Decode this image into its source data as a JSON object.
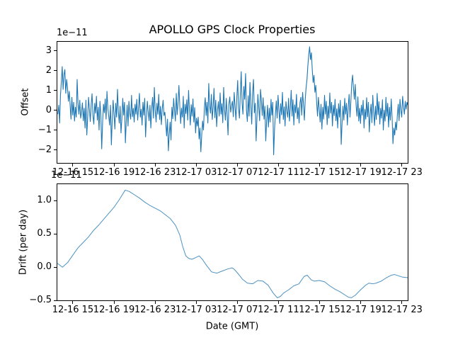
{
  "figure": {
    "title": "APOLLO GPS Clock Properties",
    "xlabel": "Date (GMT)"
  },
  "chart_data": [
    {
      "type": "line",
      "name": "offset",
      "title": "APOLLO GPS Clock Properties",
      "ylabel": "Offset",
      "offset_text": "1e−11",
      "line_color": "#1f77b4",
      "grid": false,
      "legend": "none",
      "xlim": [
        0,
        34.22
      ],
      "ylim": [
        -2.68,
        3.5
      ],
      "x_unit": "hours since 12-16 13:25 GMT",
      "yticks": [
        {
          "v": 3,
          "label": "3"
        },
        {
          "v": 2,
          "label": "2"
        },
        {
          "v": 1,
          "label": "1"
        },
        {
          "v": 0,
          "label": "0"
        },
        {
          "v": -1,
          "label": "−1"
        },
        {
          "v": -2,
          "label": "−2"
        }
      ],
      "xticks": [
        {
          "v": 1.58,
          "label": "12-16 15"
        },
        {
          "v": 5.58,
          "label": "12-16 19"
        },
        {
          "v": 9.58,
          "label": "12-16 23"
        },
        {
          "v": 13.58,
          "label": "12-17 03"
        },
        {
          "v": 17.58,
          "label": "12-17 07"
        },
        {
          "v": 21.58,
          "label": "12-17 11"
        },
        {
          "v": 25.58,
          "label": "12-17 15"
        },
        {
          "v": 29.58,
          "label": "12-17 19"
        },
        {
          "v": 33.58,
          "label": "12-17 23"
        }
      ],
      "x_start": 0.05,
      "x_end": 34.1,
      "values": [
        -0.15,
        0.3,
        -0.6,
        0.8,
        1.5,
        2.25,
        1.1,
        1.85,
        2.1,
        0.9,
        1.6,
        1.2,
        0.5,
        1.0,
        0.3,
        -0.4,
        0.7,
        -0.2,
        0.45,
        -0.5,
        0.2,
        -0.3,
        1.6,
        0.4,
        -0.15,
        0.55,
        -0.35,
        -0.05,
        0.42,
        -0.48,
        0.15,
        -0.85,
        0.55,
        -1.2,
        -0.3,
        0.7,
        0.1,
        -0.52,
        0.33,
        0.88,
        -0.22,
        -0.65,
        0.4,
        -0.1,
        0.75,
        -0.45,
        0.2,
        -0.95,
        0.5,
        -0.18,
        -1.9,
        -0.6,
        0.35,
        -0.08,
        0.62,
        -0.4,
        1.0,
        0.15,
        -0.25,
        -0.7,
        0.3,
        -1.7,
        -0.45,
        0.55,
        -0.15,
        -0.9,
        0.4,
        -0.3,
        1.1,
        -0.05,
        -0.6,
        0.25,
        -1.1,
        -0.35,
        0.65,
        -0.2,
        0.45,
        -1.6,
        -0.5,
        0.3,
        -0.75,
        0.5,
        -0.1,
        -0.4,
        0.8,
        -0.28,
        0.15,
        -0.55,
        0.35,
        -0.15,
        0.6,
        -0.45,
        0.2,
        0.9,
        -0.3,
        0.1,
        -0.7,
        0.45,
        -0.2,
        0.65,
        -1.3,
        -0.25,
        0.5,
        -0.05,
        -0.48,
        0.3,
        -0.85,
        0.15,
        0.7,
        -0.35,
        1.2,
        0.05,
        -0.55,
        0.4,
        -0.15,
        0.85,
        -0.42,
        0.25,
        -0.68,
        0.12,
        0.55,
        -0.22,
        -0.05,
        -0.6,
        -1.25,
        -0.4,
        -2.0,
        -1.15,
        -0.55,
        -1.45,
        0.2,
        -0.38,
        0.65,
        0.05,
        -0.5,
        0.9,
        -0.18,
        0.42,
        1.3,
        0.28,
        -0.62,
        0.15,
        -0.3,
        0.75,
        -0.85,
        0.35,
        -0.12,
        0.58,
        -0.45,
        1.05,
        0.02,
        -0.7,
        0.33,
        -0.25,
        0.62,
        -0.55,
        0.18,
        -1.1,
        -0.35,
        -0.75,
        -0.3,
        -1.4,
        -0.85,
        -2.05,
        -1.2,
        -0.5,
        -0.95,
        0.15,
        0.68,
        -0.22,
        0.45,
        -0.6,
        1.4,
        0.3,
        -0.1,
        0.85,
        -0.42,
        0.2,
        1.15,
        -0.33,
        0.55,
        -0.78,
        0.05,
        0.48,
        -0.25,
        0.92,
        -0.15,
        0.38,
        -0.58,
        1.2,
        0.1,
        -0.45,
        0.65,
        -0.2,
        -1.2,
        0.35,
        0.72,
        -0.05,
        0.28,
        0.5,
        -0.28,
        0.95,
        0.22,
        -0.45,
        0.7,
        1.55,
        0.15,
        -0.35,
        0.88,
        2.0,
        0.42,
        -0.15,
        1.25,
        0.6,
        1.9,
        0.05,
        -0.52,
        0.78,
        -0.25,
        1.45,
        0.3,
        -0.65,
        0.95,
        1.6,
        -0.08,
        0.4,
        -1.5,
        -0.3,
        0.85,
        0.18,
        -0.48,
        1.1,
        0.55,
        -0.22,
        0.68,
        -0.4,
        0.25,
        -1.5,
        -0.45,
        0.3,
        -0.8,
        0.15,
        -0.55,
        0.6,
        -0.2,
        0.45,
        -2.2,
        -0.9,
        -0.15,
        0.52,
        -0.35,
        0.8,
        0.08,
        -0.62,
        0.38,
        -0.18,
        0.95,
        -0.42,
        0.22,
        -0.75,
        0.48,
        0.02,
        -0.3,
        0.65,
        -0.5,
        0.15,
        1.05,
        -0.25,
        0.58,
        -0.7,
        0.32,
        -0.08,
        0.85,
        -0.38,
        0.18,
        -0.6,
        0.42,
        0.7,
        -0.2,
        0.95,
        0.35,
        -0.45,
        0.6,
        1.2,
        1.6,
        2.3,
        2.85,
        3.25,
        2.6,
        2.95,
        2.1,
        1.45,
        1.8,
        0.95,
        1.3,
        0.45,
        -0.25,
        0.7,
        0.1,
        -0.55,
        0.35,
        -0.9,
        0.2,
        -0.4,
        0.8,
        -0.15,
        0.5,
        -0.68,
        0.25,
        -0.35,
        0.92,
        -0.1,
        0.45,
        -0.75,
        0.3,
        -0.22,
        0.6,
        -0.48,
        0.12,
        -0.85,
        0.38,
        -0.3,
        0.55,
        -1.68,
        -0.6,
        0.25,
        -0.45,
        0.65,
        -0.15,
        0.4,
        -0.7,
        0.2,
        0.85,
        -0.3,
        0.5,
        1.4,
        1.82,
        1.15,
        0.6,
        1.35,
        0.28,
        -0.25,
        0.72,
        -0.5,
        0.15,
        -0.62,
        0.3,
        -0.2,
        0.55,
        -0.85,
        0.1,
        -0.4,
        0.68,
        -0.28,
        0.45,
        -1.05,
        -0.15,
        0.35,
        -0.58,
        0.8,
        -0.05,
        -0.72,
        0.25,
        -0.42,
        0.9,
        -0.18,
        0.48,
        -0.65,
        0.15,
        -0.35,
        0.58,
        -0.95,
        0.05,
        -0.5,
        0.7,
        -0.25,
        0.4,
        -0.8,
        0.2,
        -0.45,
        0.62,
        -0.3,
        -1.64,
        -0.85,
        -1.2,
        -0.55,
        -0.95,
        -0.2,
        0.35,
        -0.48,
        0.6,
        0.05,
        -0.3,
        0.75,
        0.25,
        -0.15,
        0.5,
        0.1,
        0.45,
        0.3
      ]
    },
    {
      "type": "line",
      "name": "drift",
      "ylabel": "Drift (per day)",
      "xlabel": "Date (GMT)",
      "offset_text": "1e−11",
      "line_color": "#1f77b4",
      "grid": false,
      "legend": "none",
      "xlim": [
        0,
        34.22
      ],
      "ylim": [
        -0.51,
        1.26
      ],
      "x_unit": "hours since 12-16 13:25 GMT",
      "yticks": [
        {
          "v": 1.0,
          "label": "1.0"
        },
        {
          "v": 0.5,
          "label": "0.5"
        },
        {
          "v": 0.0,
          "label": "0.0"
        },
        {
          "v": -0.5,
          "label": "−0.5"
        }
      ],
      "xticks": [
        {
          "v": 1.58,
          "label": "12-16 15"
        },
        {
          "v": 5.58,
          "label": "12-16 19"
        },
        {
          "v": 9.58,
          "label": "12-16 23"
        },
        {
          "v": 13.58,
          "label": "12-17 03"
        },
        {
          "v": 17.58,
          "label": "12-17 07"
        },
        {
          "v": 21.58,
          "label": "12-17 11"
        },
        {
          "v": 25.58,
          "label": "12-17 15"
        },
        {
          "v": 29.58,
          "label": "12-17 19"
        },
        {
          "v": 33.58,
          "label": "12-17 23"
        }
      ],
      "x": [
        0,
        0.5,
        1,
        1.5,
        2,
        2.5,
        3,
        3.5,
        4,
        4.5,
        5,
        5.5,
        6,
        6.6,
        7,
        7.5,
        8,
        8.5,
        9,
        9.5,
        10,
        10.5,
        11,
        11.5,
        11.9,
        12.2,
        12.5,
        12.8,
        13.1,
        13.4,
        13.8,
        14.1,
        14.5,
        15,
        15.5,
        16,
        16.5,
        17,
        17.2,
        17.6,
        18,
        18.5,
        19,
        19.5,
        20,
        20.5,
        21,
        21.4,
        21.7,
        22,
        22.5,
        23,
        23.5,
        24,
        24.3,
        24.7,
        25,
        25.5,
        26,
        26.5,
        27,
        27.5,
        28,
        28.3,
        28.6,
        29,
        29.5,
        30,
        30.3,
        30.7,
        31,
        31.5,
        32,
        32.5,
        32.8,
        33.2,
        33.6,
        34.2
      ],
      "values": [
        0.07,
        0.01,
        0.08,
        0.19,
        0.3,
        0.38,
        0.46,
        0.56,
        0.64,
        0.73,
        0.82,
        0.91,
        1.02,
        1.17,
        1.15,
        1.1,
        1.05,
        0.99,
        0.94,
        0.9,
        0.86,
        0.8,
        0.74,
        0.64,
        0.5,
        0.32,
        0.18,
        0.14,
        0.13,
        0.15,
        0.18,
        0.13,
        0.04,
        -0.06,
        -0.08,
        -0.05,
        -0.02,
        0.0,
        -0.02,
        -0.09,
        -0.17,
        -0.23,
        -0.24,
        -0.19,
        -0.2,
        -0.26,
        -0.38,
        -0.45,
        -0.43,
        -0.38,
        -0.33,
        -0.27,
        -0.24,
        -0.13,
        -0.11,
        -0.18,
        -0.2,
        -0.19,
        -0.21,
        -0.27,
        -0.32,
        -0.36,
        -0.41,
        -0.44,
        -0.45,
        -0.41,
        -0.33,
        -0.26,
        -0.23,
        -0.24,
        -0.23,
        -0.2,
        -0.15,
        -0.11,
        -0.1,
        -0.12,
        -0.14,
        -0.15
      ]
    }
  ]
}
